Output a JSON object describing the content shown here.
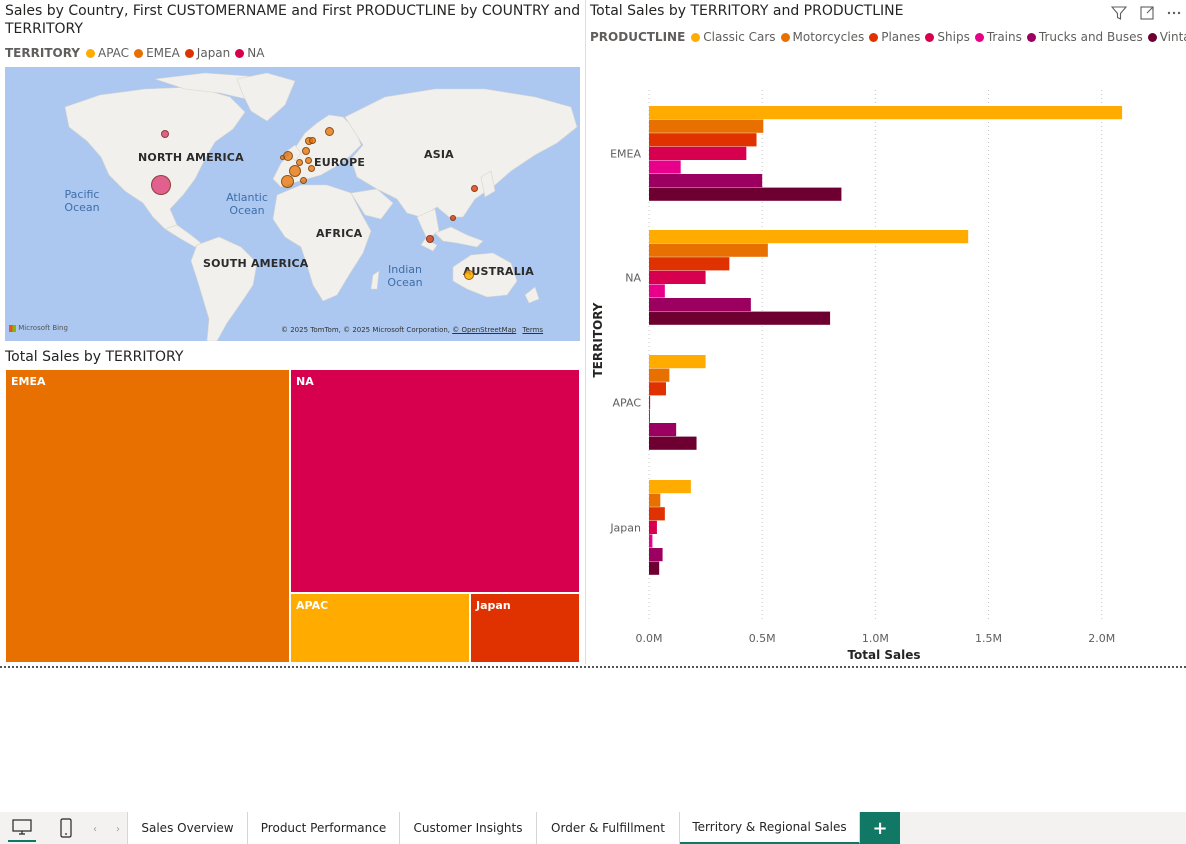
{
  "map_visual": {
    "title": "Sales by Country, First CUSTOMERNAME and First PRODUCTLINE by COUNTRY and TERRITORY",
    "legend_title": "TERRITORY",
    "legend": [
      {
        "label": "APAC",
        "color": "#ffab00"
      },
      {
        "label": "EMEA",
        "color": "#e77000"
      },
      {
        "label": "Japan",
        "color": "#e03200"
      },
      {
        "label": "NA",
        "color": "#d6004f"
      }
    ],
    "continents": [
      "NORTH AMERICA",
      "EUROPE",
      "ASIA",
      "AFRICA",
      "SOUTH AMERICA",
      "AUSTRALIA"
    ],
    "oceans": [
      "Pacific Ocean",
      "Atlantic Ocean",
      "Indian Ocean"
    ],
    "logo_text": "Microsoft Bing",
    "attribution": "© 2025 TomTom, © 2025 Microsoft Corporation,",
    "attribution_link": "© OpenStreetMap",
    "terms": "Terms"
  },
  "treemap_visual": {
    "title": "Total Sales by TERRITORY",
    "tiles": [
      {
        "label": "EMEA",
        "color": "#e77000"
      },
      {
        "label": "NA",
        "color": "#d6004f"
      },
      {
        "label": "APAC",
        "color": "#ffab00"
      },
      {
        "label": "Japan",
        "color": "#e03200"
      }
    ]
  },
  "bar_visual": {
    "toolbar": {
      "filter_icon": "filter-icon",
      "focus_icon": "focus-mode-icon",
      "more_icon": "more-options-icon"
    }
  },
  "chart_data": {
    "type": "bar",
    "orientation": "horizontal",
    "title": "Total Sales by TERRITORY and PRODUCTLINE",
    "legend_title": "PRODUCTLINE",
    "xlabel": "Total Sales",
    "ylabel": "TERRITORY",
    "xlim": [
      0,
      2200000
    ],
    "x_ticks": [
      "0.0M",
      "0.5M",
      "1.0M",
      "1.5M",
      "2.0M"
    ],
    "x_tick_values": [
      0,
      500000,
      1000000,
      1500000,
      2000000
    ],
    "categories": [
      "EMEA",
      "NA",
      "APAC",
      "Japan"
    ],
    "series": [
      {
        "name": "Classic Cars",
        "color": "#ffab00",
        "values": [
          2090000,
          1410000,
          250000,
          185000
        ]
      },
      {
        "name": "Motorcycles",
        "color": "#e77000",
        "values": [
          505000,
          525000,
          90000,
          50000
        ]
      },
      {
        "name": "Planes",
        "color": "#e03200",
        "values": [
          475000,
          355000,
          75000,
          70000
        ]
      },
      {
        "name": "Ships",
        "color": "#d6004f",
        "values": [
          430000,
          250000,
          5000,
          35000
        ]
      },
      {
        "name": "Trains",
        "color": "#e8008a",
        "values": [
          140000,
          70000,
          3000,
          15000
        ]
      },
      {
        "name": "Trucks and Buses",
        "color": "#9b0060",
        "values": [
          500000,
          450000,
          120000,
          60000
        ]
      },
      {
        "name": "Vintage Cars",
        "color": "#6d0030",
        "values": [
          850000,
          800000,
          210000,
          45000
        ]
      }
    ],
    "grid": "vertical-dotted",
    "legend_position": "top-left"
  },
  "tabs": {
    "pages": [
      "Sales Overview",
      "Product Performance",
      "Customer Insights",
      "Order & Fulfillment",
      "Territory & Regional Sales"
    ],
    "active": "Territory & Regional Sales",
    "add_label": "+"
  }
}
